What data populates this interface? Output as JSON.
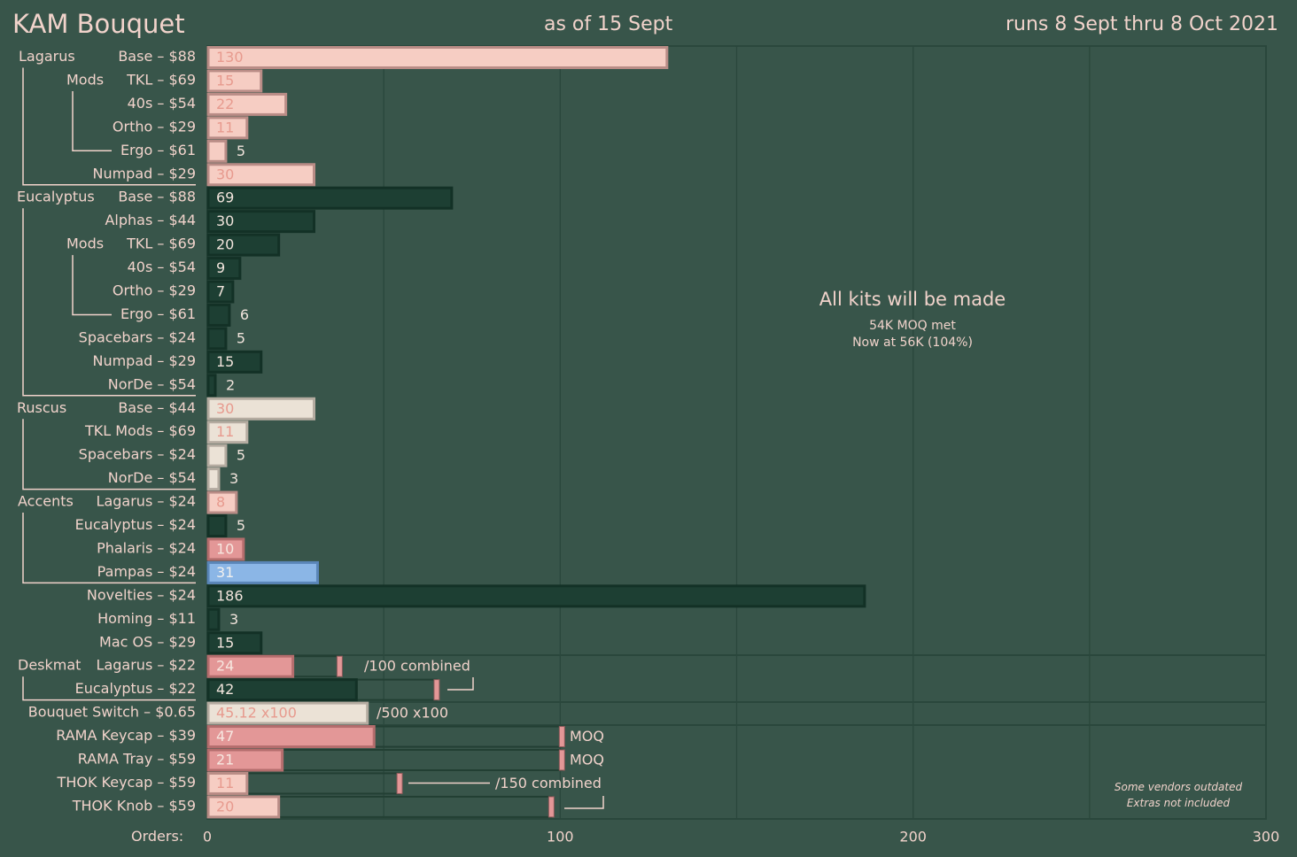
{
  "header": {
    "title": "KAM Bouquet",
    "as_of": "as of 15 Sept",
    "runs": "runs 8 Sept thru 8 Oct 2021"
  },
  "orders_label": "Orders:",
  "annotation": {
    "title": "All kits will be made",
    "line1": "54K MOQ met",
    "line2": "Now at 56K (104%)"
  },
  "footnote": {
    "line1": "Some vendors outdated",
    "line2": "Extras not included"
  },
  "colors": {
    "background": "#38554a",
    "gridline": "#2a473c",
    "label_text": "#f1d3cb",
    "pink": "#f6cdc3",
    "dark_green": "#1d3f33",
    "cream": "#ebe2d6",
    "salmon": "#e39797",
    "blue": "#8bb6e6"
  },
  "chart_data": {
    "type": "bar",
    "orientation": "horizontal",
    "xlim": [
      0,
      300
    ],
    "xticks": [
      "0",
      "100",
      "200",
      "300"
    ],
    "groups": [
      {
        "name": "Lagarus",
        "rows": [
          0,
          5
        ]
      },
      {
        "name": "Mods",
        "rows": [
          1,
          4
        ]
      },
      {
        "name": "Eucalyptus",
        "rows": [
          6,
          14
        ]
      },
      {
        "name": "Mods",
        "rows": [
          8,
          11
        ]
      },
      {
        "name": "Ruscus",
        "rows": [
          15,
          18
        ]
      },
      {
        "name": "Accents",
        "rows": [
          19,
          22
        ]
      },
      {
        "name": "Deskmat",
        "rows": [
          26,
          27
        ]
      }
    ],
    "rows": [
      {
        "label": "Base – $88",
        "value": 130,
        "value_label": "130",
        "color": "pink"
      },
      {
        "label": "TKL – $69",
        "value": 15,
        "value_label": "15",
        "color": "pink"
      },
      {
        "label": "40s – $54",
        "value": 22,
        "value_label": "22",
        "color": "pink"
      },
      {
        "label": "Ortho – $29",
        "value": 11,
        "value_label": "11",
        "color": "pink"
      },
      {
        "label": "Ergo – $61",
        "value": 5,
        "value_label": "5",
        "color": "pink"
      },
      {
        "label": "Numpad – $29",
        "value": 30,
        "value_label": "30",
        "color": "pink"
      },
      {
        "label": "Base – $88",
        "value": 69,
        "value_label": "69",
        "color": "dark_green"
      },
      {
        "label": "Alphas – $44",
        "value": 30,
        "value_label": "30",
        "color": "dark_green"
      },
      {
        "label": "TKL – $69",
        "value": 20,
        "value_label": "20",
        "color": "dark_green"
      },
      {
        "label": "40s – $54",
        "value": 9,
        "value_label": "9",
        "color": "dark_green"
      },
      {
        "label": "Ortho – $29",
        "value": 7,
        "value_label": "7",
        "color": "dark_green"
      },
      {
        "label": "Ergo – $61",
        "value": 6,
        "value_label": "6",
        "color": "dark_green"
      },
      {
        "label": "Spacebars – $24",
        "value": 5,
        "value_label": "5",
        "color": "dark_green"
      },
      {
        "label": "Numpad – $29",
        "value": 15,
        "value_label": "15",
        "color": "dark_green"
      },
      {
        "label": "NorDe – $54",
        "value": 2,
        "value_label": "2",
        "color": "dark_green"
      },
      {
        "label": "Base – $44",
        "value": 30,
        "value_label": "30",
        "color": "cream"
      },
      {
        "label": "TKL Mods – $69",
        "value": 11,
        "value_label": "11",
        "color": "cream"
      },
      {
        "label": "Spacebars – $24",
        "value": 5,
        "value_label": "5",
        "color": "cream"
      },
      {
        "label": "NorDe – $54",
        "value": 3,
        "value_label": "3",
        "color": "cream"
      },
      {
        "label": "Lagarus – $24",
        "value": 8,
        "value_label": "8",
        "color": "pink"
      },
      {
        "label": "Eucalyptus – $24",
        "value": 5,
        "value_label": "5",
        "color": "dark_green"
      },
      {
        "label": "Phalaris – $24",
        "value": 10,
        "value_label": "10",
        "color": "salmon"
      },
      {
        "label": "Pampas – $24",
        "value": 31,
        "value_label": "31",
        "color": "blue"
      },
      {
        "label": "Novelties – $24",
        "value": 186,
        "value_label": "186",
        "color": "dark_green"
      },
      {
        "label": "Homing – $11",
        "value": 3,
        "value_label": "3",
        "color": "dark_green"
      },
      {
        "label": "Mac OS – $29",
        "value": 15,
        "value_label": "15",
        "color": "dark_green"
      },
      {
        "label": "Lagarus – $22",
        "value": 24,
        "value_label": "24",
        "color": "salmon",
        "moq": 37.5,
        "note": "/100 combined"
      },
      {
        "label": "Eucalyptus – $22",
        "value": 42,
        "value_label": "42",
        "color": "dark_green",
        "moq": 65
      },
      {
        "label": "Bouquet Switch – $0.65",
        "value": 45.12,
        "value_label": "45.12 x100",
        "color": "cream",
        "note": "/500 x100"
      },
      {
        "label": "RAMA Keycap – $39",
        "value": 47,
        "value_label": "47",
        "color": "salmon",
        "moq": 100.5,
        "note": "MOQ"
      },
      {
        "label": "RAMA Tray – $59",
        "value": 21,
        "value_label": "21",
        "color": "salmon",
        "moq": 100.5,
        "note": "MOQ"
      },
      {
        "label": "THOK Keycap – $59",
        "value": 11,
        "value_label": "11",
        "color": "pink",
        "moq": 54.5,
        "note": "/150 combined"
      },
      {
        "label": "THOK Knob – $59",
        "value": 20,
        "value_label": "20",
        "color": "pink",
        "moq": 97.5
      }
    ]
  }
}
